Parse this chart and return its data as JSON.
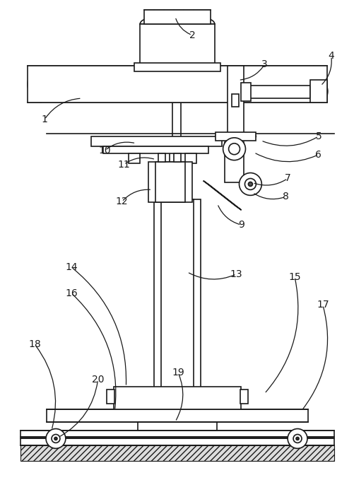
{
  "background_color": "#ffffff",
  "line_color": "#1a1a1a",
  "line_width": 1.2,
  "label_data": [
    [
      "1",
      62,
      168,
      115,
      138
    ],
    [
      "2",
      272,
      48,
      248,
      22
    ],
    [
      "3",
      375,
      90,
      338,
      112
    ],
    [
      "4",
      470,
      78,
      455,
      120
    ],
    [
      "5",
      452,
      192,
      370,
      198
    ],
    [
      "6",
      452,
      218,
      360,
      215
    ],
    [
      "7",
      408,
      252,
      358,
      258
    ],
    [
      "8",
      405,
      278,
      358,
      272
    ],
    [
      "9",
      342,
      318,
      308,
      288
    ],
    [
      "10",
      148,
      212,
      192,
      202
    ],
    [
      "11",
      175,
      232,
      220,
      225
    ],
    [
      "12",
      172,
      285,
      215,
      268
    ],
    [
      "13",
      335,
      388,
      265,
      385
    ],
    [
      "14",
      100,
      378,
      178,
      548
    ],
    [
      "15",
      418,
      392,
      375,
      558
    ],
    [
      "16",
      100,
      415,
      162,
      582
    ],
    [
      "17",
      458,
      432,
      428,
      582
    ],
    [
      "18",
      48,
      488,
      72,
      610
    ],
    [
      "19",
      252,
      528,
      248,
      598
    ],
    [
      "20",
      138,
      538,
      82,
      620
    ]
  ]
}
